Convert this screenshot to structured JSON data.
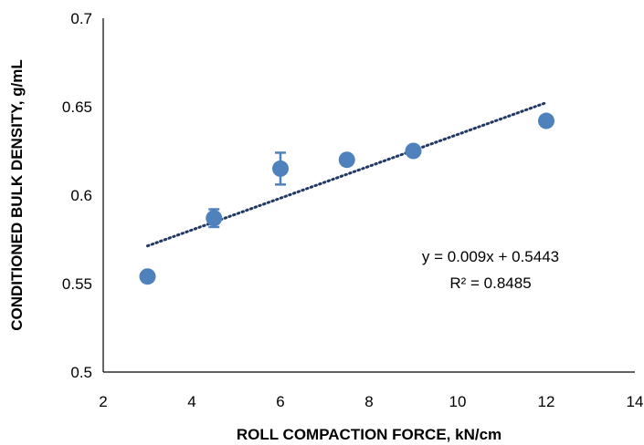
{
  "chart_data": {
    "type": "scatter",
    "xlabel": "ROLL COMPACTION FORCE, kN/cm",
    "ylabel": "CONDITIONED BULK DENSITY, g/mL",
    "xlim": [
      2,
      14
    ],
    "ylim": [
      0.5,
      0.7
    ],
    "x_ticks": [
      "2",
      "4",
      "6",
      "8",
      "10",
      "12",
      "14"
    ],
    "y_ticks": [
      "0.5",
      "0.55",
      "0.6",
      "0.65",
      "0.7"
    ],
    "grid": false,
    "legend": "none",
    "series": [
      {
        "x": [
          3,
          4.5,
          6,
          7.5,
          9,
          12
        ],
        "y": [
          0.554,
          0.587,
          0.615,
          0.62,
          0.625,
          0.642
        ],
        "error": [
          0,
          0.005,
          0.009,
          0,
          0,
          0
        ],
        "color": "#4f81bd"
      }
    ],
    "trendline": {
      "type": "linear",
      "slope": 0.009,
      "intercept": 0.5443,
      "x_range": [
        3,
        12
      ],
      "color": "#1f3864",
      "style": "dotted",
      "equation": "y = 0.009x + 0.5443",
      "r2": "R² = 0.8485"
    }
  }
}
